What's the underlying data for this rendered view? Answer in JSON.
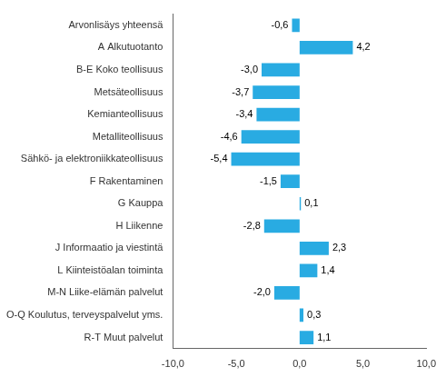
{
  "chart_data": {
    "type": "bar",
    "orientation": "horizontal",
    "categories": [
      "Arvonlisäys yhteensä",
      "A Alkutuotanto",
      "B-E Koko teollisuus",
      "Metsäteollisuus",
      "Kemianteollisuus",
      "Metalliteollisuus",
      "Sähkö- ja elektroniikkateollisuus",
      "F Rakentaminen",
      "G Kauppa",
      "H Liikenne",
      "J Informaatio ja viestintä",
      "L Kiinteistöalan toiminta",
      "M-N Liike-elämän palvelut",
      "O-Q Koulutus, terveyspalvelut yms.",
      "R-T Muut palvelut"
    ],
    "values": [
      -0.6,
      4.2,
      -3.0,
      -3.7,
      -3.4,
      -4.6,
      -5.4,
      -1.5,
      0.1,
      -2.8,
      2.3,
      1.4,
      -2.0,
      0.3,
      1.1
    ],
    "value_labels": [
      "-0,6",
      "4,2",
      "-3,0",
      "-3,7",
      "-3,4",
      "-4,6",
      "-5,4",
      "-1,5",
      "0,1",
      "-2,8",
      "2,3",
      "1,4",
      "-2,0",
      "0,3",
      "1,1"
    ],
    "color": "#29ABE2",
    "xlim": [
      -10,
      10
    ],
    "xticks": [
      {
        "value": -10,
        "label": "-10,0"
      },
      {
        "value": -5,
        "label": "-5,0"
      },
      {
        "value": 0,
        "label": "0,0"
      },
      {
        "value": 5,
        "label": "5,0"
      },
      {
        "value": 10,
        "label": "10,0"
      }
    ],
    "grid": false,
    "data_labels": true
  }
}
